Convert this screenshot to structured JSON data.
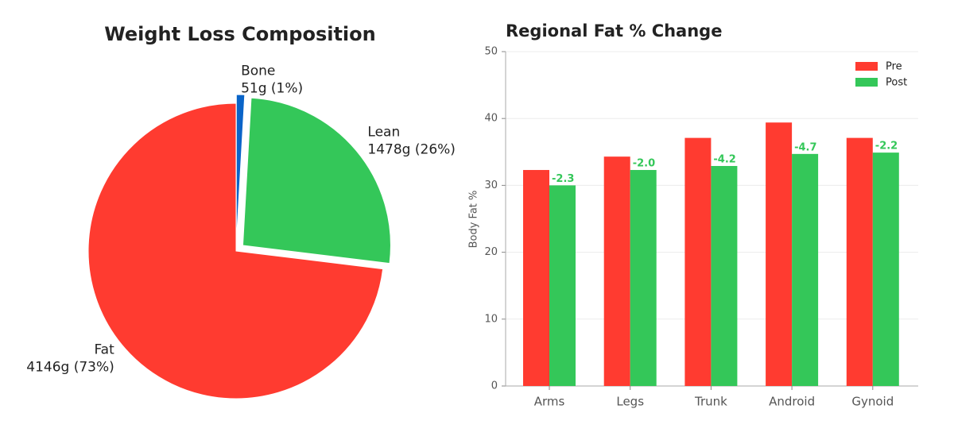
{
  "chart_data": [
    {
      "type": "pie",
      "title": "Weight Loss Composition",
      "categories": [
        "Fat",
        "Lean",
        "Bone"
      ],
      "values": [
        4146,
        1478,
        51
      ],
      "value_labels": [
        "4146g (73%)",
        "1478g (26%)",
        "51g (1%)"
      ],
      "colors": [
        "#ff3b30",
        "#34c759",
        "#0a64c8"
      ]
    },
    {
      "type": "bar",
      "title": "Regional Fat % Change",
      "ylabel": "Body Fat %",
      "categories": [
        "Arms",
        "Legs",
        "Trunk",
        "Android",
        "Gynoid"
      ],
      "series": [
        {
          "name": "Pre",
          "color": "#ff3b30",
          "values": [
            32.3,
            34.3,
            37.1,
            39.4,
            37.1
          ]
        },
        {
          "name": "Post",
          "color": "#34c759",
          "values": [
            30.0,
            32.3,
            32.9,
            34.7,
            34.9
          ]
        }
      ],
      "changes": {
        "values": [
          -2.3,
          -2.0,
          -4.2,
          -4.7,
          -2.2
        ],
        "value_labels": [
          "-2.3",
          "-2.0",
          "-4.2",
          "-4.7",
          "-2.2"
        ],
        "color": "#34c759"
      },
      "ylim": [
        0,
        50
      ],
      "yticks": [
        0,
        10,
        20,
        30,
        40,
        50
      ],
      "grid": true,
      "legend": "upper right"
    }
  ]
}
